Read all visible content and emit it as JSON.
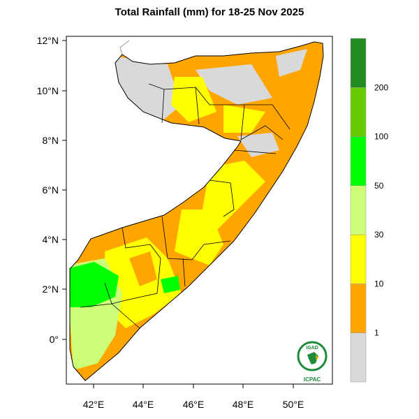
{
  "title": "Total Rainfall (mm) for 18-25 Nov 2025",
  "map": {
    "region": "Somalia",
    "lon_ticks": [
      "42°E",
      "44°E",
      "46°E",
      "48°E",
      "50°E"
    ],
    "lat_ticks": [
      "12°N",
      "10°N",
      "8°N",
      "6°N",
      "4°N",
      "2°N",
      "0°"
    ]
  },
  "legend": {
    "labels": [
      "1",
      "10",
      "30",
      "50",
      "100",
      "200"
    ],
    "colors": [
      "#d9d9d9",
      "#ffa500",
      "#ffff00",
      "#ccff77",
      "#00ff00",
      "#66cc00",
      "#228b22"
    ]
  },
  "logo": {
    "top": "IGAD",
    "bottom": "ICPAC"
  }
}
